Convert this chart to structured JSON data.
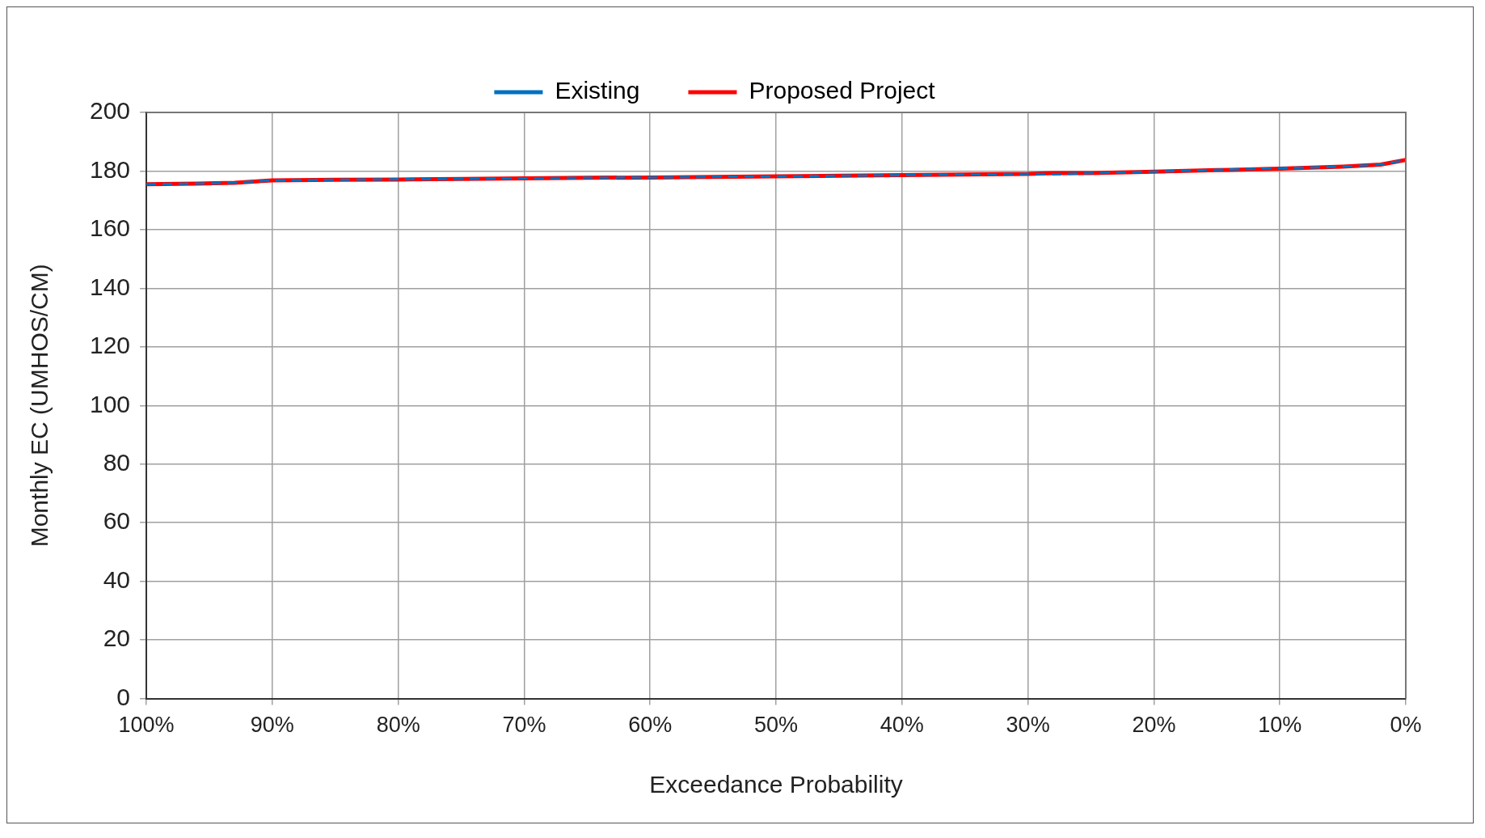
{
  "chart_data": {
    "type": "line",
    "xlabel": "Exceedance Probability",
    "ylabel": "Monthly EC (UMHOS/CM)",
    "x": [
      100,
      96,
      93,
      90,
      85,
      80,
      75,
      70,
      65,
      60,
      55,
      50,
      45,
      40,
      35,
      30,
      28,
      25,
      20,
      15,
      10,
      5,
      2,
      0
    ],
    "series": [
      {
        "name": "Existing",
        "color": "#0070c0",
        "line_style": "dashed",
        "values": [
          175.5,
          175.7,
          176,
          176.8,
          177,
          177.2,
          177.3,
          177.5,
          177.7,
          177.8,
          178,
          178.2,
          178.4,
          178.6,
          178.8,
          179,
          178.9,
          179.3,
          179.8,
          180.4,
          181,
          181.5,
          182.2,
          183.8
        ]
      },
      {
        "name": "Proposed Project",
        "color": "#ff0000",
        "line_style": "solid",
        "values": [
          175.5,
          175.7,
          176,
          176.8,
          177,
          177.1,
          177.3,
          177.5,
          177.7,
          177.8,
          178,
          178.2,
          178.4,
          178.6,
          178.8,
          179,
          179.3,
          179.3,
          179.8,
          180.3,
          180.8,
          181.5,
          182.2,
          183.8
        ]
      }
    ],
    "xlim": [
      100,
      0
    ],
    "xticks": [
      {
        "value": 100,
        "label": "100%"
      },
      {
        "value": 90,
        "label": "90%"
      },
      {
        "value": 80,
        "label": "80%"
      },
      {
        "value": 70,
        "label": "70%"
      },
      {
        "value": 60,
        "label": "60%"
      },
      {
        "value": 50,
        "label": "50%"
      },
      {
        "value": 40,
        "label": "40%"
      },
      {
        "value": 30,
        "label": "30%"
      },
      {
        "value": 20,
        "label": "20%"
      },
      {
        "value": 10,
        "label": "10%"
      },
      {
        "value": 0,
        "label": "0%"
      }
    ],
    "ylim": [
      0,
      200
    ],
    "yticks": [
      0,
      20,
      40,
      60,
      80,
      100,
      120,
      140,
      160,
      180,
      200
    ],
    "grid": true,
    "legend": "top",
    "marker": "none"
  }
}
